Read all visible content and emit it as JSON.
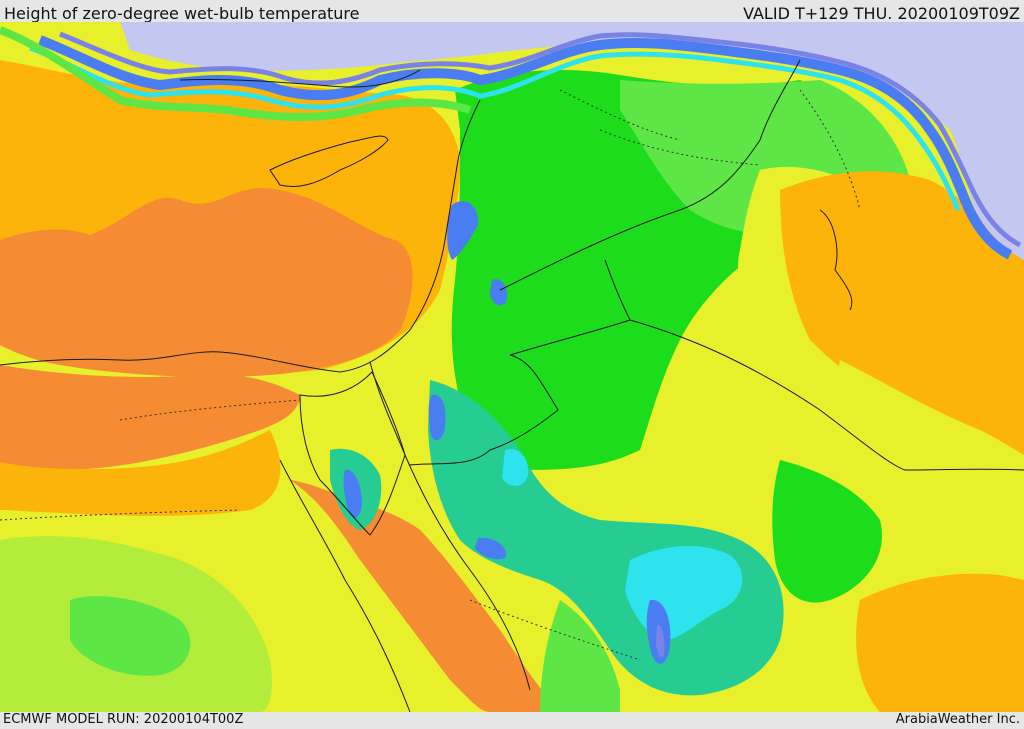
{
  "header": {
    "title": "Height of zero-degree wet-bulb temperature",
    "valid": "VALID T+129 THU. 20200109T09Z"
  },
  "footer": {
    "model_run": "ECMWF MODEL RUN: 20200104T00Z",
    "credit": "ArabiaWeather Inc."
  },
  "colors": {
    "deep_orange": "#f58b32",
    "orange": "#fcb40a",
    "yellow": "#e8f02c",
    "yellow_green": "#b4ec3c",
    "light_green": "#5ee646",
    "green": "#1cdc1c",
    "teal": "#26cc92",
    "cyan": "#2ee2ee",
    "blue": "#4a7cf2",
    "violet": "#7a82e6",
    "lavender": "#c4c8f0",
    "border": "#1a1a1a"
  }
}
